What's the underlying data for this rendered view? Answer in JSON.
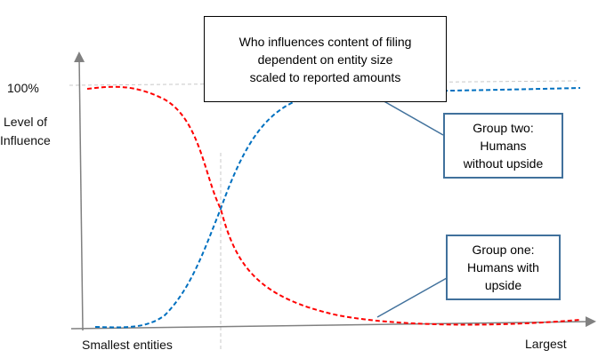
{
  "title": {
    "line1": "Who influences content of filing",
    "line2": "dependent on entity size",
    "line3": "scaled to reported amounts"
  },
  "y_axis": {
    "label_line1": "Level of",
    "label_line2": "Influence",
    "tick_top": "100%"
  },
  "x_axis": {
    "label_left": "Smallest entities",
    "label_right": "Largest"
  },
  "callouts": [
    {
      "line1": "Group two:",
      "line2": "Humans",
      "line3": "without upside",
      "color": "#0070c0"
    },
    {
      "line1": "Group one:",
      "line2": "Humans with",
      "line3": "upside",
      "color": "#ff0000"
    }
  ],
  "colors": {
    "group_one": "#ff0000",
    "group_two": "#0070c0",
    "callout_border": "#41719c"
  }
}
